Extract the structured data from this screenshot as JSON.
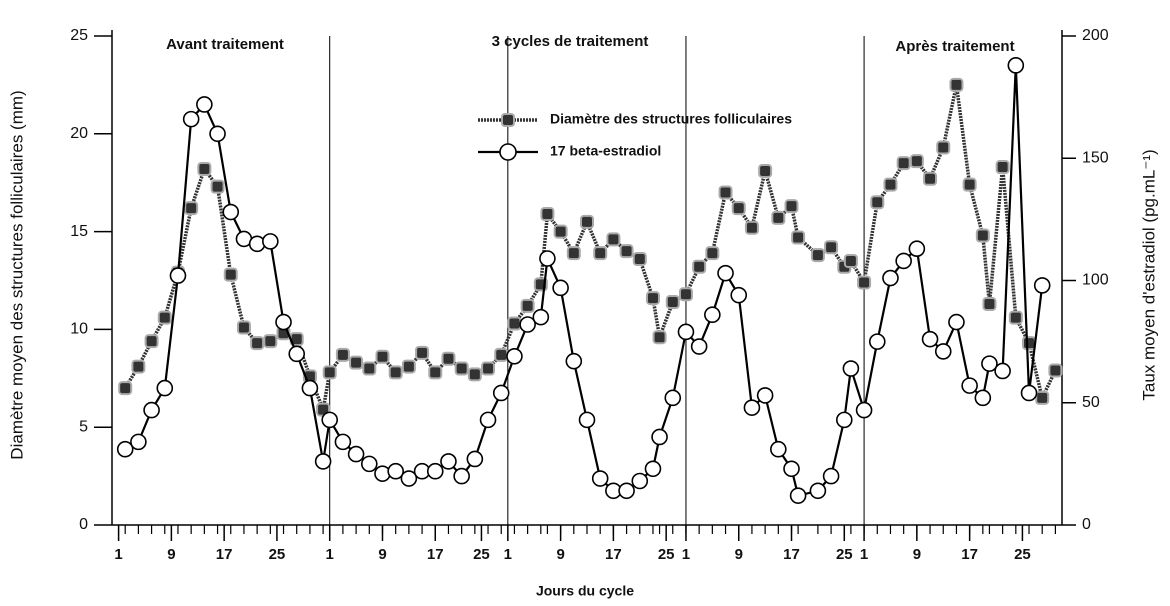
{
  "chart_data": {
    "type": "line",
    "annotations": [
      "Avant traitement",
      "3 cycles de traitement",
      "Après traitement"
    ],
    "xlabel": "Jours du cycle",
    "ylabel": "Diamètre moyen des structures folliculaires (mm)",
    "y2label": "Taux moyen d'estradiol (pg.mL⁻¹)",
    "x": [
      2,
      4,
      6,
      8,
      10,
      12,
      14,
      16,
      18,
      20,
      22,
      24,
      26,
      28,
      30,
      32,
      33,
      35,
      37,
      39,
      41,
      43,
      45,
      47,
      49,
      51,
      53,
      55,
      57,
      59,
      61,
      63,
      65,
      66,
      68,
      70,
      72,
      74,
      76,
      78,
      80,
      82,
      83,
      85,
      87,
      89,
      91,
      93,
      95,
      97,
      99,
      101,
      103,
      104,
      107,
      109,
      111,
      112,
      114,
      116,
      118,
      120,
      122,
      124,
      126,
      128,
      130,
      132,
      133,
      135,
      137,
      139,
      141,
      143
    ],
    "dividers": [
      33,
      60,
      87,
      114
    ],
    "series": [
      {
        "name": "Diamètre des structures folliculaires",
        "color": "#333333",
        "marker": "square",
        "values": [
          7.0,
          8.1,
          9.4,
          10.6,
          12.9,
          16.2,
          18.2,
          17.3,
          12.8,
          10.1,
          9.3,
          9.4,
          9.8,
          9.5,
          7.6,
          5.9,
          7.8,
          8.7,
          8.3,
          8.0,
          8.6,
          7.8,
          8.1,
          8.8,
          7.8,
          8.5,
          8.0,
          7.7,
          8.0,
          8.7,
          10.3,
          11.2,
          12.3,
          15.9,
          15.0,
          13.9,
          15.5,
          13.9,
          14.6,
          14.0,
          13.6,
          11.6,
          9.6,
          11.4,
          11.8,
          13.2,
          13.9,
          17.0,
          16.2,
          15.2,
          18.1,
          15.7,
          16.3,
          14.7,
          13.8,
          14.2,
          13.2,
          13.5,
          12.4,
          16.5,
          17.4,
          18.5,
          18.6,
          17.7,
          19.3,
          22.5,
          17.4,
          14.8,
          11.3,
          18.3,
          10.6,
          9.3,
          6.5,
          7.9
        ]
      },
      {
        "name": "17 beta-estradiol",
        "color": "#000000",
        "marker": "circle",
        "axis": "y2",
        "values": [
          31,
          34,
          47,
          56,
          102,
          166,
          172,
          160,
          128,
          117,
          115,
          116,
          83,
          70,
          56,
          26,
          43,
          34,
          29,
          25,
          21,
          22,
          19,
          22,
          22,
          26,
          20,
          27,
          43,
          54,
          69,
          82,
          85,
          109,
          97,
          67,
          43,
          19,
          14,
          14,
          18,
          23,
          36,
          52,
          79,
          73,
          86,
          103,
          94,
          48,
          53,
          31,
          23,
          12,
          14,
          20,
          43,
          64,
          47,
          75,
          101,
          108,
          113,
          76,
          71,
          83,
          57,
          52,
          66,
          63,
          188,
          54,
          98,
          null
        ]
      }
    ],
    "xlim": [
      0,
      144
    ],
    "xticks": [
      1,
      9,
      17,
      25,
      {
        "value": 33,
        "label": "1"
      },
      {
        "value": 41,
        "label": "9"
      },
      {
        "value": 49,
        "label": "17"
      },
      {
        "value": 56,
        "label": "25"
      },
      {
        "value": 60,
        "label": "1"
      },
      {
        "value": 68,
        "label": "9"
      },
      {
        "value": 76,
        "label": "17"
      },
      {
        "value": 84,
        "label": "25"
      },
      {
        "value": 87,
        "label": "1"
      },
      {
        "value": 95,
        "label": "9"
      },
      {
        "value": 103,
        "label": "17"
      },
      {
        "value": 111,
        "label": "25"
      },
      {
        "value": 114,
        "label": "1"
      },
      {
        "value": 122,
        "label": "9"
      },
      {
        "value": 130,
        "label": "17"
      },
      {
        "value": 138,
        "label": "25"
      }
    ],
    "ylim": [
      0,
      25
    ],
    "yticks": [
      0,
      5,
      10,
      15,
      20,
      25
    ],
    "y2lim": [
      0,
      200
    ],
    "y2ticks": [
      0,
      50,
      100,
      150,
      200
    ]
  }
}
